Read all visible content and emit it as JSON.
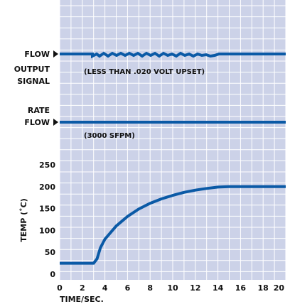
{
  "colors": {
    "background": "#ccd2e8",
    "grid": "#ffffff",
    "line": "#0b5aa6",
    "text": "#111111"
  },
  "labels": {
    "flow_output_line1": "FLOW",
    "flow_output_line2": "OUTPUT",
    "flow_output_line3": "SIGNAL",
    "rate_flow_line1": "RATE",
    "rate_flow_line2": "FLOW",
    "flow_note": "(LESS THAN .020 VOLT UPSET)",
    "rate_note": "(3000 SFPM)"
  },
  "chart_data": {
    "type": "line",
    "title": "",
    "xlabel": "TIME/SEC.",
    "ylabel": "TEMP (˚C)",
    "xlim": [
      0,
      20
    ],
    "ylim": [
      0,
      250
    ],
    "x_ticks": [
      "0",
      "2",
      "4",
      "6",
      "8",
      "10",
      "12",
      "14",
      "16",
      "18",
      "20"
    ],
    "y_ticks": [
      "0",
      "50",
      "100",
      "150",
      "200",
      "250"
    ],
    "grid": true,
    "series": [
      {
        "x": [
          0,
          1,
          2,
          3,
          3.3,
          3.6,
          4,
          5,
          6,
          7,
          8,
          9,
          10,
          11,
          12,
          13,
          14,
          15,
          16,
          17,
          18,
          19,
          20
        ],
        "y": [
          25,
          25,
          25,
          25,
          35,
          60,
          80,
          110,
          132,
          149,
          162,
          172,
          180,
          187,
          192,
          196,
          199,
          200,
          200,
          200,
          200,
          200,
          200
        ]
      }
    ]
  }
}
